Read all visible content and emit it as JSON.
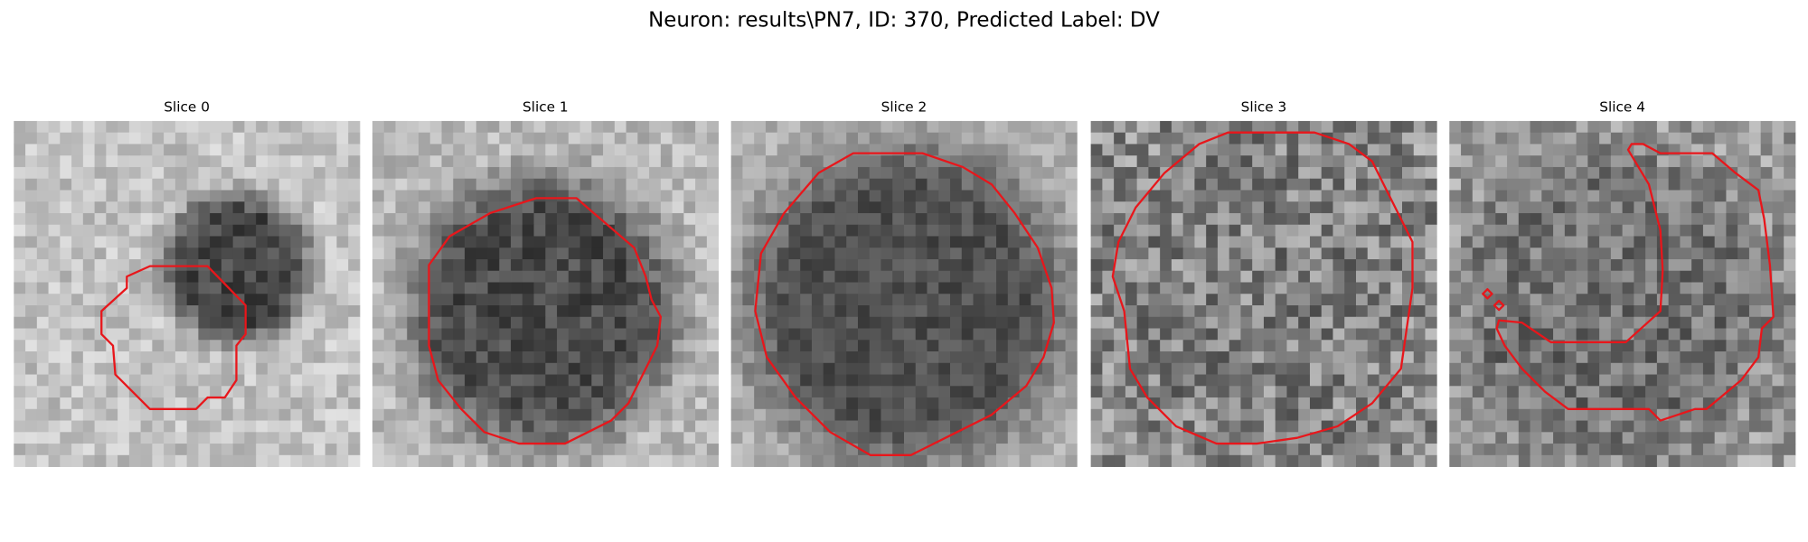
{
  "title": "Neuron: results\\PN7, ID: 370, Predicted Label: DV",
  "panels": [
    {
      "title": "Slice 0"
    },
    {
      "title": "Slice 1"
    },
    {
      "title": "Slice 2"
    },
    {
      "title": "Slice 3"
    },
    {
      "title": "Slice 4"
    }
  ]
}
